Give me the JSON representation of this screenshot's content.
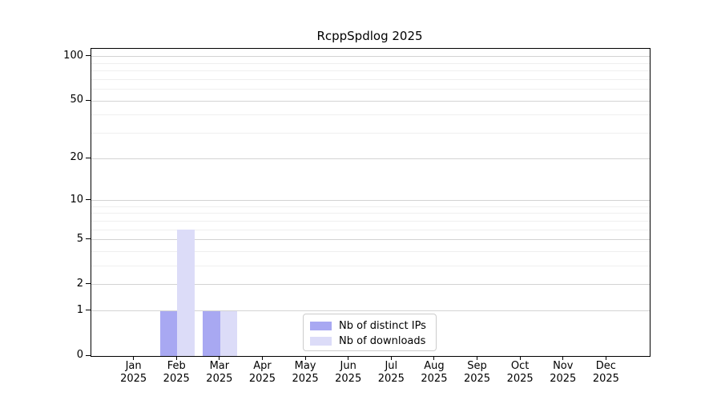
{
  "chart_data": {
    "type": "bar",
    "title": "RcppSpdlog 2025",
    "categories": [
      "Jan",
      "Feb",
      "Mar",
      "Apr",
      "May",
      "Jun",
      "Jul",
      "Aug",
      "Sep",
      "Oct",
      "Nov",
      "Dec"
    ],
    "year_label": "2025",
    "series": [
      {
        "name": "Nb of distinct IPs",
        "color": "#a8a8f2",
        "values": [
          0,
          1,
          1,
          0,
          0,
          0,
          0,
          0,
          0,
          0,
          0,
          0
        ]
      },
      {
        "name": "Nb of downloads",
        "color": "#dcdcf8",
        "values": [
          0,
          6,
          1,
          0,
          0,
          0,
          0,
          0,
          0,
          0,
          0,
          0
        ]
      }
    ],
    "xlabel": "",
    "ylabel": "",
    "y_axis": {
      "scale": "log1p",
      "ticks": [
        0,
        1,
        2,
        5,
        10,
        20,
        50,
        100
      ],
      "minor_gridlines": [
        3,
        4,
        6,
        7,
        8,
        9,
        30,
        40,
        60,
        70,
        80,
        90
      ],
      "ylim": [
        0,
        113
      ]
    },
    "grid": true,
    "legend_position": "inside-bottom-center"
  },
  "colors": {
    "background": "#ffffff",
    "spine": "#000000",
    "major_grid": "#d3d3d3",
    "minor_grid": "#efefef",
    "text": "#000000"
  }
}
